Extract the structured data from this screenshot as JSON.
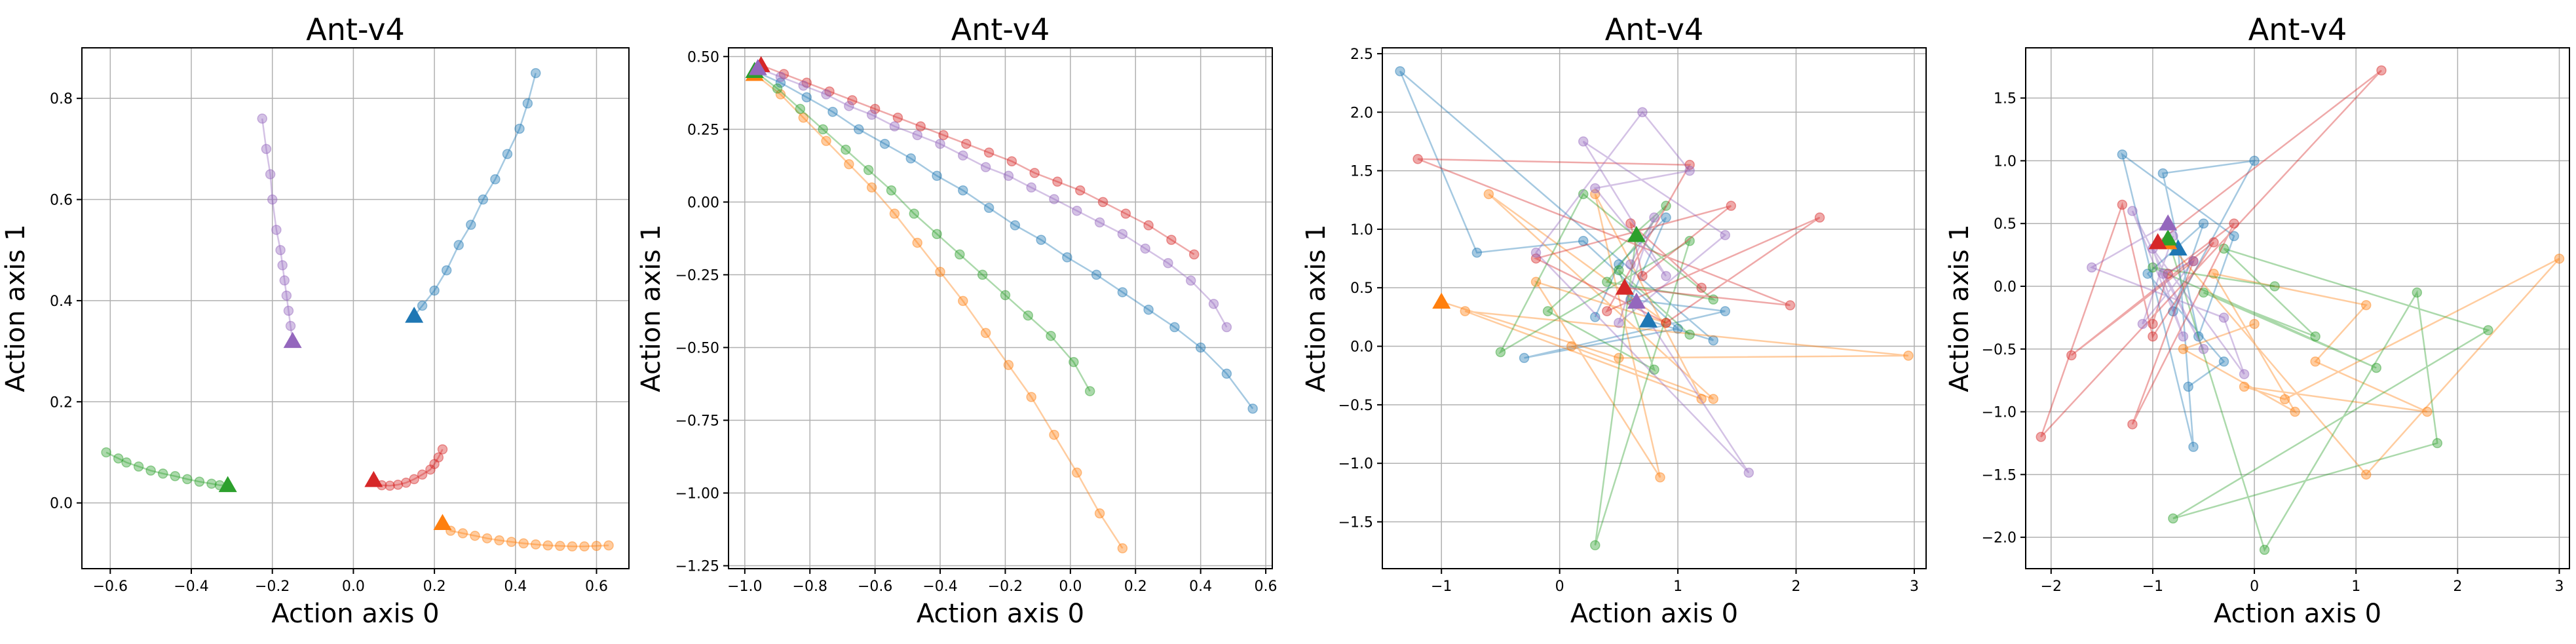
{
  "colors": {
    "blue": "#1f77b4",
    "orange": "#ff7f0e",
    "green": "#2ca02c",
    "red": "#d62728",
    "purple": "#9467bd",
    "grid": "#b0b0b0"
  },
  "chart_data": [
    {
      "type": "scatter",
      "title": "Ant-v4",
      "xlabel": "Action axis 0",
      "ylabel": "Action axis 1",
      "xlim": [
        -0.67,
        0.68
      ],
      "ylim": [
        -0.13,
        0.9
      ],
      "xticks": [
        -0.6,
        -0.4,
        -0.2,
        0.0,
        0.2,
        0.4,
        0.6
      ],
      "yticks": [
        0.0,
        0.2,
        0.4,
        0.6,
        0.8
      ],
      "xtick_labels": [
        "−0.6",
        "−0.4",
        "−0.2",
        "0.0",
        "0.2",
        "0.4",
        "0.6"
      ],
      "ytick_labels": [
        "0.0",
        "0.2",
        "0.4",
        "0.6",
        "0.8"
      ],
      "grid": true,
      "series": [
        {
          "color_key": "blue",
          "x": [
            0.15,
            0.17,
            0.2,
            0.23,
            0.26,
            0.29,
            0.32,
            0.35,
            0.38,
            0.41,
            0.43,
            0.45
          ],
          "y": [
            0.37,
            0.39,
            0.42,
            0.46,
            0.51,
            0.55,
            0.6,
            0.64,
            0.69,
            0.74,
            0.79,
            0.85
          ]
        },
        {
          "color_key": "orange",
          "x": [
            0.22,
            0.24,
            0.27,
            0.3,
            0.33,
            0.36,
            0.39,
            0.42,
            0.45,
            0.48,
            0.51,
            0.54,
            0.57,
            0.6,
            0.63
          ],
          "y": [
            -0.04,
            -0.055,
            -0.06,
            -0.065,
            -0.07,
            -0.074,
            -0.077,
            -0.08,
            -0.082,
            -0.084,
            -0.085,
            -0.086,
            -0.086,
            -0.085,
            -0.084
          ]
        },
        {
          "color_key": "green",
          "x": [
            -0.31,
            -0.33,
            -0.35,
            -0.38,
            -0.41,
            -0.44,
            -0.47,
            -0.5,
            -0.53,
            -0.56,
            -0.58,
            -0.61
          ],
          "y": [
            0.035,
            0.035,
            0.038,
            0.042,
            0.047,
            0.053,
            0.058,
            0.064,
            0.072,
            0.08,
            0.088,
            0.1
          ]
        },
        {
          "color_key": "red",
          "x": [
            0.05,
            0.07,
            0.09,
            0.11,
            0.13,
            0.15,
            0.17,
            0.19,
            0.2,
            0.21,
            0.22
          ],
          "y": [
            0.045,
            0.035,
            0.034,
            0.036,
            0.04,
            0.047,
            0.056,
            0.066,
            0.077,
            0.09,
            0.106
          ]
        },
        {
          "color_key": "purple",
          "x": [
            -0.15,
            -0.155,
            -0.16,
            -0.165,
            -0.17,
            -0.175,
            -0.18,
            -0.19,
            -0.2,
            -0.205,
            -0.215,
            -0.225
          ],
          "y": [
            0.32,
            0.35,
            0.38,
            0.41,
            0.44,
            0.47,
            0.5,
            0.54,
            0.6,
            0.65,
            0.7,
            0.76
          ]
        }
      ]
    },
    {
      "type": "scatter",
      "title": "Ant-v4",
      "xlabel": "Action axis 0",
      "ylabel": "Action axis 1",
      "xlim": [
        -1.05,
        0.62
      ],
      "ylim": [
        -1.26,
        0.53
      ],
      "xticks": [
        -1.0,
        -0.8,
        -0.6,
        -0.4,
        -0.2,
        0.0,
        0.2,
        0.4,
        0.6
      ],
      "yticks": [
        -1.25,
        -1.0,
        -0.75,
        -0.5,
        -0.25,
        0.0,
        0.25,
        0.5
      ],
      "xtick_labels": [
        "−1.0",
        "−0.8",
        "−0.6",
        "−0.4",
        "−0.2",
        "0.0",
        "0.2",
        "0.4",
        "0.6"
      ],
      "ytick_labels": [
        "−1.25",
        "−1.00",
        "−0.75",
        "−0.50",
        "−0.25",
        "0.00",
        "0.25",
        "0.50"
      ],
      "grid": true,
      "series": [
        {
          "color_key": "blue",
          "x": [
            -0.97,
            -0.89,
            -0.81,
            -0.73,
            -0.65,
            -0.57,
            -0.49,
            -0.41,
            -0.33,
            -0.25,
            -0.17,
            -0.09,
            -0.01,
            0.08,
            0.16,
            0.24,
            0.32,
            0.4,
            0.48,
            0.56
          ],
          "y": [
            0.45,
            0.41,
            0.36,
            0.31,
            0.25,
            0.2,
            0.15,
            0.09,
            0.04,
            -0.02,
            -0.08,
            -0.13,
            -0.19,
            -0.25,
            -0.31,
            -0.37,
            -0.43,
            -0.5,
            -0.59,
            -0.71
          ]
        },
        {
          "color_key": "orange",
          "x": [
            -0.97,
            -0.89,
            -0.82,
            -0.75,
            -0.68,
            -0.61,
            -0.54,
            -0.47,
            -0.4,
            -0.33,
            -0.26,
            -0.19,
            -0.12,
            -0.05,
            0.02,
            0.09,
            0.16
          ],
          "y": [
            0.44,
            0.37,
            0.29,
            0.21,
            0.13,
            0.05,
            -0.04,
            -0.14,
            -0.24,
            -0.34,
            -0.45,
            -0.56,
            -0.67,
            -0.8,
            -0.93,
            -1.07,
            -1.19
          ]
        },
        {
          "color_key": "green",
          "x": [
            -0.97,
            -0.9,
            -0.83,
            -0.76,
            -0.69,
            -0.62,
            -0.55,
            -0.48,
            -0.41,
            -0.34,
            -0.27,
            -0.2,
            -0.13,
            -0.06,
            0.01,
            0.06
          ],
          "y": [
            0.45,
            0.39,
            0.32,
            0.25,
            0.18,
            0.11,
            0.04,
            -0.04,
            -0.11,
            -0.18,
            -0.25,
            -0.32,
            -0.39,
            -0.46,
            -0.55,
            -0.65
          ]
        },
        {
          "color_key": "red",
          "x": [
            -0.95,
            -0.88,
            -0.81,
            -0.74,
            -0.67,
            -0.6,
            -0.53,
            -0.46,
            -0.39,
            -0.32,
            -0.25,
            -0.18,
            -0.11,
            -0.04,
            0.03,
            0.1,
            0.17,
            0.24,
            0.31,
            0.38
          ],
          "y": [
            0.47,
            0.44,
            0.41,
            0.38,
            0.35,
            0.32,
            0.29,
            0.26,
            0.23,
            0.2,
            0.17,
            0.14,
            0.1,
            0.07,
            0.04,
            0.0,
            -0.04,
            -0.08,
            -0.13,
            -0.18
          ]
        },
        {
          "color_key": "purple",
          "x": [
            -0.96,
            -0.89,
            -0.82,
            -0.75,
            -0.68,
            -0.61,
            -0.54,
            -0.47,
            -0.4,
            -0.33,
            -0.26,
            -0.19,
            -0.12,
            -0.05,
            0.02,
            0.09,
            0.16,
            0.23,
            0.3,
            0.37,
            0.44,
            0.48
          ],
          "y": [
            0.46,
            0.43,
            0.4,
            0.37,
            0.33,
            0.3,
            0.26,
            0.23,
            0.2,
            0.16,
            0.12,
            0.09,
            0.05,
            0.01,
            -0.03,
            -0.07,
            -0.11,
            -0.16,
            -0.21,
            -0.27,
            -0.35,
            -0.43
          ]
        }
      ]
    },
    {
      "type": "scatter",
      "title": "Ant-v4",
      "xlabel": "Action axis 0",
      "ylabel": "Action axis 1",
      "xlim": [
        -1.5,
        3.1
      ],
      "ylim": [
        -1.9,
        2.55
      ],
      "xticks": [
        -1,
        0,
        1,
        2,
        3
      ],
      "yticks": [
        -1.5,
        -1.0,
        -0.5,
        0.0,
        0.5,
        1.0,
        1.5,
        2.0,
        2.5
      ],
      "xtick_labels": [
        "−1",
        "0",
        "1",
        "2",
        "3"
      ],
      "ytick_labels": [
        "−1.5",
        "−1.0",
        "−0.5",
        "0.0",
        "0.5",
        "1.0",
        "1.5",
        "2.0",
        "2.5"
      ],
      "grid": true,
      "series": [
        {
          "color_key": "blue",
          "x": [
            0.75,
            1.3,
            -1.35,
            -0.7,
            0.2,
            1.0,
            -0.3,
            1.4,
            0.6,
            0.9,
            0.5,
            0.3
          ],
          "y": [
            0.22,
            0.05,
            2.35,
            0.8,
            0.9,
            0.15,
            -0.1,
            0.3,
            0.4,
            1.1,
            0.7,
            0.25
          ]
        },
        {
          "color_key": "orange",
          "x": [
            -1.0,
            0.5,
            2.95,
            -0.8,
            1.2,
            0.3,
            0.85,
            -0.2,
            0.9,
            -0.6,
            1.3,
            0.1
          ],
          "y": [
            0.38,
            -0.1,
            -0.08,
            0.3,
            -0.45,
            1.3,
            -1.12,
            0.55,
            0.2,
            1.3,
            -0.45,
            0.0
          ]
        },
        {
          "color_key": "green",
          "x": [
            0.65,
            0.3,
            1.1,
            -0.5,
            0.2,
            1.3,
            0.4,
            0.9,
            -0.1,
            0.8,
            0.5,
            1.1
          ],
          "y": [
            0.95,
            -1.7,
            0.9,
            -0.05,
            1.3,
            0.4,
            0.55,
            1.2,
            0.3,
            -0.2,
            0.65,
            0.1
          ]
        },
        {
          "color_key": "red",
          "x": [
            0.55,
            1.95,
            -1.2,
            1.1,
            0.4,
            2.2,
            0.9,
            -0.2,
            1.45,
            0.7,
            0.6,
            1.2
          ],
          "y": [
            0.5,
            0.35,
            1.6,
            1.55,
            0.3,
            1.1,
            0.2,
            0.75,
            1.2,
            0.6,
            1.05,
            0.5
          ]
        },
        {
          "color_key": "purple",
          "x": [
            0.65,
            1.6,
            -0.2,
            0.7,
            1.1,
            0.3,
            0.9,
            0.2,
            1.4,
            0.5,
            0.8,
            0.6
          ],
          "y": [
            0.38,
            -1.08,
            0.8,
            2.0,
            1.5,
            1.35,
            0.6,
            1.75,
            0.95,
            0.2,
            1.1,
            0.7
          ]
        }
      ]
    },
    {
      "type": "scatter",
      "title": "Ant-v4",
      "xlabel": "Action axis 0",
      "ylabel": "Action axis 1",
      "xlim": [
        -2.25,
        3.1
      ],
      "ylim": [
        -2.25,
        1.9
      ],
      "xticks": [
        -2,
        -1,
        0,
        1,
        2,
        3
      ],
      "yticks": [
        -2.0,
        -1.5,
        -1.0,
        -0.5,
        0.0,
        0.5,
        1.0,
        1.5
      ],
      "xtick_labels": [
        "−2",
        "−1",
        "0",
        "1",
        "2",
        "3"
      ],
      "ytick_labels": [
        "−2.0",
        "−1.5",
        "−1.0",
        "−0.5",
        "0.0",
        "0.5",
        "1.0",
        "1.5"
      ],
      "grid": true,
      "series": [
        {
          "color_key": "blue",
          "x": [
            -0.75,
            -0.6,
            -1.3,
            -0.2,
            -0.55,
            -0.9,
            0.0,
            -0.8,
            -0.5,
            -1.05,
            -0.3,
            -0.65
          ],
          "y": [
            0.3,
            -1.28,
            1.05,
            0.4,
            -0.4,
            0.9,
            1.0,
            -0.2,
            0.5,
            0.1,
            -0.6,
            -0.8
          ]
        },
        {
          "color_key": "orange",
          "x": [
            -0.85,
            1.1,
            3.0,
            0.3,
            -0.1,
            1.7,
            0.6,
            1.1,
            -0.4,
            0.4,
            -0.7,
            0.0
          ],
          "y": [
            0.35,
            -1.5,
            0.22,
            -0.9,
            -0.8,
            -1.0,
            -0.6,
            -0.15,
            0.1,
            -1.0,
            -0.5,
            -0.3
          ]
        },
        {
          "color_key": "green",
          "x": [
            -0.85,
            0.1,
            1.6,
            1.8,
            -0.8,
            2.3,
            -0.3,
            0.6,
            -0.5,
            1.2,
            -1.0,
            0.2
          ],
          "y": [
            0.38,
            -2.1,
            -0.05,
            -1.25,
            -1.85,
            -0.35,
            0.3,
            -0.4,
            -0.05,
            -0.65,
            0.15,
            0.0
          ]
        },
        {
          "color_key": "red",
          "x": [
            -0.95,
            1.25,
            -2.1,
            -1.3,
            -1.0,
            -0.4,
            -1.8,
            -0.6,
            -1.2,
            -0.2,
            -0.85,
            -1.0
          ],
          "y": [
            0.35,
            1.72,
            -1.2,
            0.65,
            -0.4,
            0.35,
            -0.55,
            0.2,
            -1.1,
            0.5,
            0.1,
            -0.3
          ]
        },
        {
          "color_key": "purple",
          "x": [
            -0.85,
            -1.6,
            -0.3,
            -0.1,
            -1.0,
            -0.7,
            -1.2,
            -0.5,
            -0.9,
            -0.6,
            -1.1,
            -0.8
          ],
          "y": [
            0.5,
            0.15,
            -0.25,
            -0.7,
            0.3,
            -0.4,
            0.6,
            -0.5,
            0.1,
            0.2,
            -0.3,
            0.4
          ]
        }
      ]
    }
  ]
}
